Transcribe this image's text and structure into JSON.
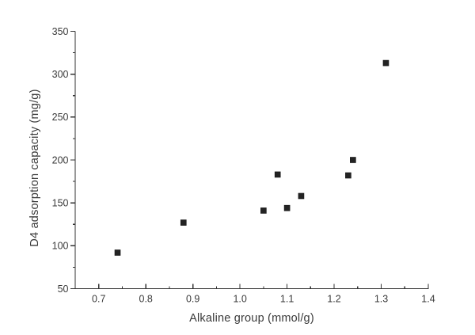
{
  "figure": {
    "background": "#ffffff",
    "axis_color": "#333333",
    "text_color": "#3a3a3a",
    "marker_color": "#232323"
  },
  "chart_data": {
    "type": "scatter",
    "title": "",
    "xlabel": "Alkaline group (mmol/g)",
    "ylabel": "D4 adsorption capacity (mg/g)",
    "xlim": [
      0.65,
      1.4
    ],
    "ylim": [
      50,
      350
    ],
    "grid": false,
    "legend": false,
    "marker": "filled-square",
    "x_major_ticks": [
      0.7,
      0.8,
      0.9,
      1.0,
      1.1,
      1.2,
      1.3,
      1.4
    ],
    "x_tick_labels": [
      "0.7",
      "0.8",
      "0.9",
      "1.0",
      "1.1",
      "1.2",
      "1.3",
      "1.4"
    ],
    "x_minor_ticks": [
      0.75,
      0.85,
      0.95,
      1.05,
      1.15,
      1.25,
      1.35
    ],
    "y_major_ticks": [
      50,
      100,
      150,
      200,
      250,
      300,
      350
    ],
    "y_tick_labels": [
      "50",
      "100",
      "150",
      "200",
      "250",
      "300",
      "350"
    ],
    "y_minor_ticks": [
      75,
      125,
      175,
      225,
      275,
      325
    ],
    "points": [
      {
        "x": 0.74,
        "y": 92
      },
      {
        "x": 0.88,
        "y": 127
      },
      {
        "x": 1.05,
        "y": 141
      },
      {
        "x": 1.08,
        "y": 183
      },
      {
        "x": 1.1,
        "y": 144
      },
      {
        "x": 1.13,
        "y": 158
      },
      {
        "x": 1.23,
        "y": 182
      },
      {
        "x": 1.24,
        "y": 200
      },
      {
        "x": 1.31,
        "y": 313
      }
    ]
  }
}
